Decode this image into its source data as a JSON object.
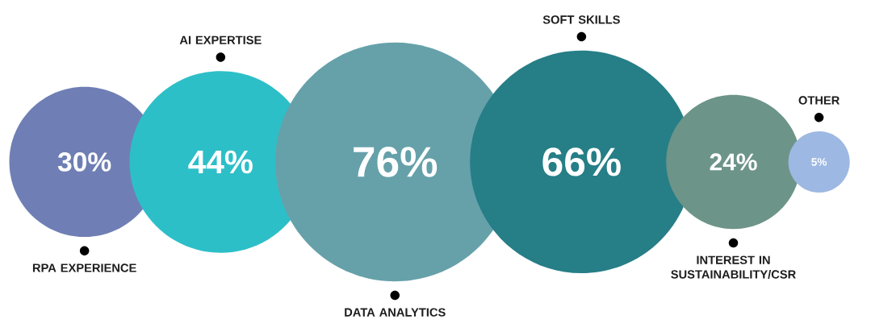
{
  "chart_data": {
    "type": "other",
    "categories": [
      "RPA EXPERIENCE",
      "AI EXPERTISE",
      "DATA ANALYTICS",
      "SOFT SKILLS",
      "INTEREST IN SUSTAINABILITY/CSR",
      "OTHER"
    ],
    "values": [
      30,
      44,
      76,
      66,
      24,
      5
    ],
    "value_labels": [
      "30%",
      "44%",
      "76%",
      "66%",
      "24%",
      "5%"
    ],
    "colors": [
      "#6f7fb5",
      "#2dbfc8",
      "#66a1aa",
      "#267e87",
      "#6d9488",
      "#9db8e2"
    ]
  }
}
